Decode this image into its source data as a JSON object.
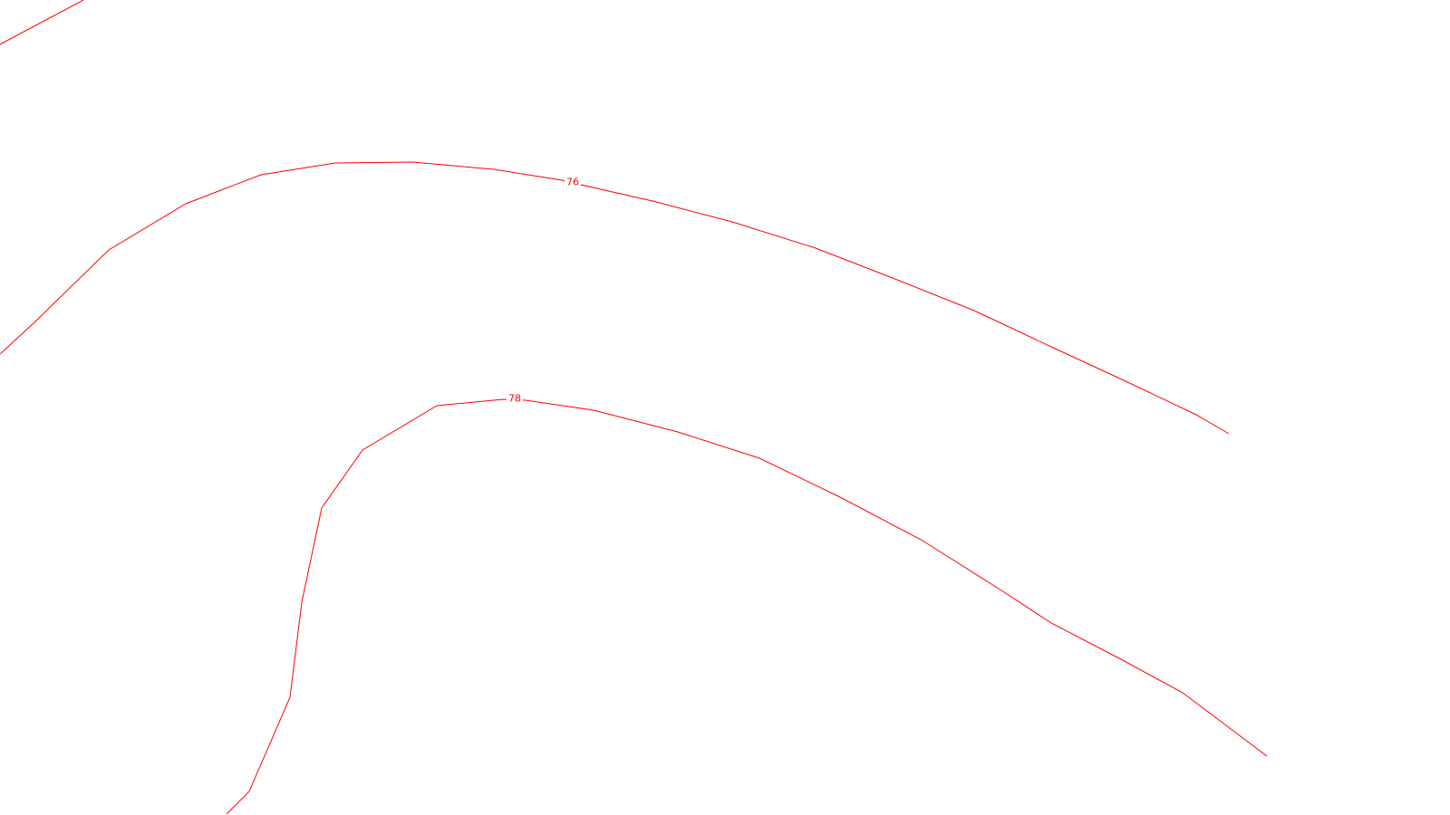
{
  "map": {
    "line_color": "#ff0000",
    "background_color": "#ffffff",
    "contours": [
      {
        "label": ""
      },
      {
        "label": "76"
      },
      {
        "label": "78"
      }
    ]
  }
}
